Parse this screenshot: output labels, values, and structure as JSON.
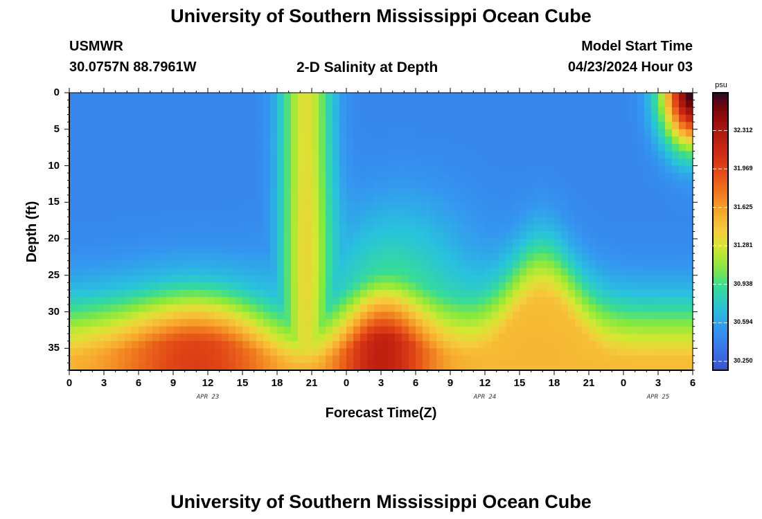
{
  "page": {
    "title": "University of Southern Mississippi Ocean Cube",
    "footer_title": "University of Southern Mississippi Ocean Cube",
    "station": "USMWR",
    "coords": "30.0757N  88.7961W",
    "subtitle": "2-D Salinity at Depth",
    "model_label": "Model Start Time",
    "model_time": "04/23/2024 Hour 03"
  },
  "chart_data": {
    "type": "heatmap",
    "title": "2-D Salinity at Depth",
    "xlabel": "Forecast Time(Z)",
    "ylabel": "Depth (ft)",
    "x_ticks": [
      "0",
      "3",
      "6",
      "9",
      "12",
      "15",
      "18",
      "21",
      "0",
      "3",
      "6",
      "9",
      "12",
      "15",
      "18",
      "21",
      "0",
      "3",
      "6"
    ],
    "x_range_hours": [
      0,
      54
    ],
    "date_labels": [
      {
        "text": "APR 23",
        "hour": 12
      },
      {
        "text": "APR 24",
        "hour": 36
      },
      {
        "text": "APR 25",
        "hour": 51
      }
    ],
    "y_ticks": [
      0,
      5,
      10,
      15,
      20,
      25,
      30,
      35
    ],
    "ylim": [
      0,
      38
    ],
    "colorbar": {
      "unit": "psu",
      "labels": [
        "32.312",
        "31.969",
        "31.625",
        "31.281",
        "30.938",
        "30.594",
        "30.250"
      ],
      "range": [
        30.17,
        32.65
      ]
    },
    "surface_features": {
      "fresh_background_psu": 30.45,
      "deep_max_psu": 32.55,
      "mid_plume_center_hour": 20.5,
      "mid_plume_psu": 31.32,
      "dark_corner_psu": 32.65
    }
  }
}
